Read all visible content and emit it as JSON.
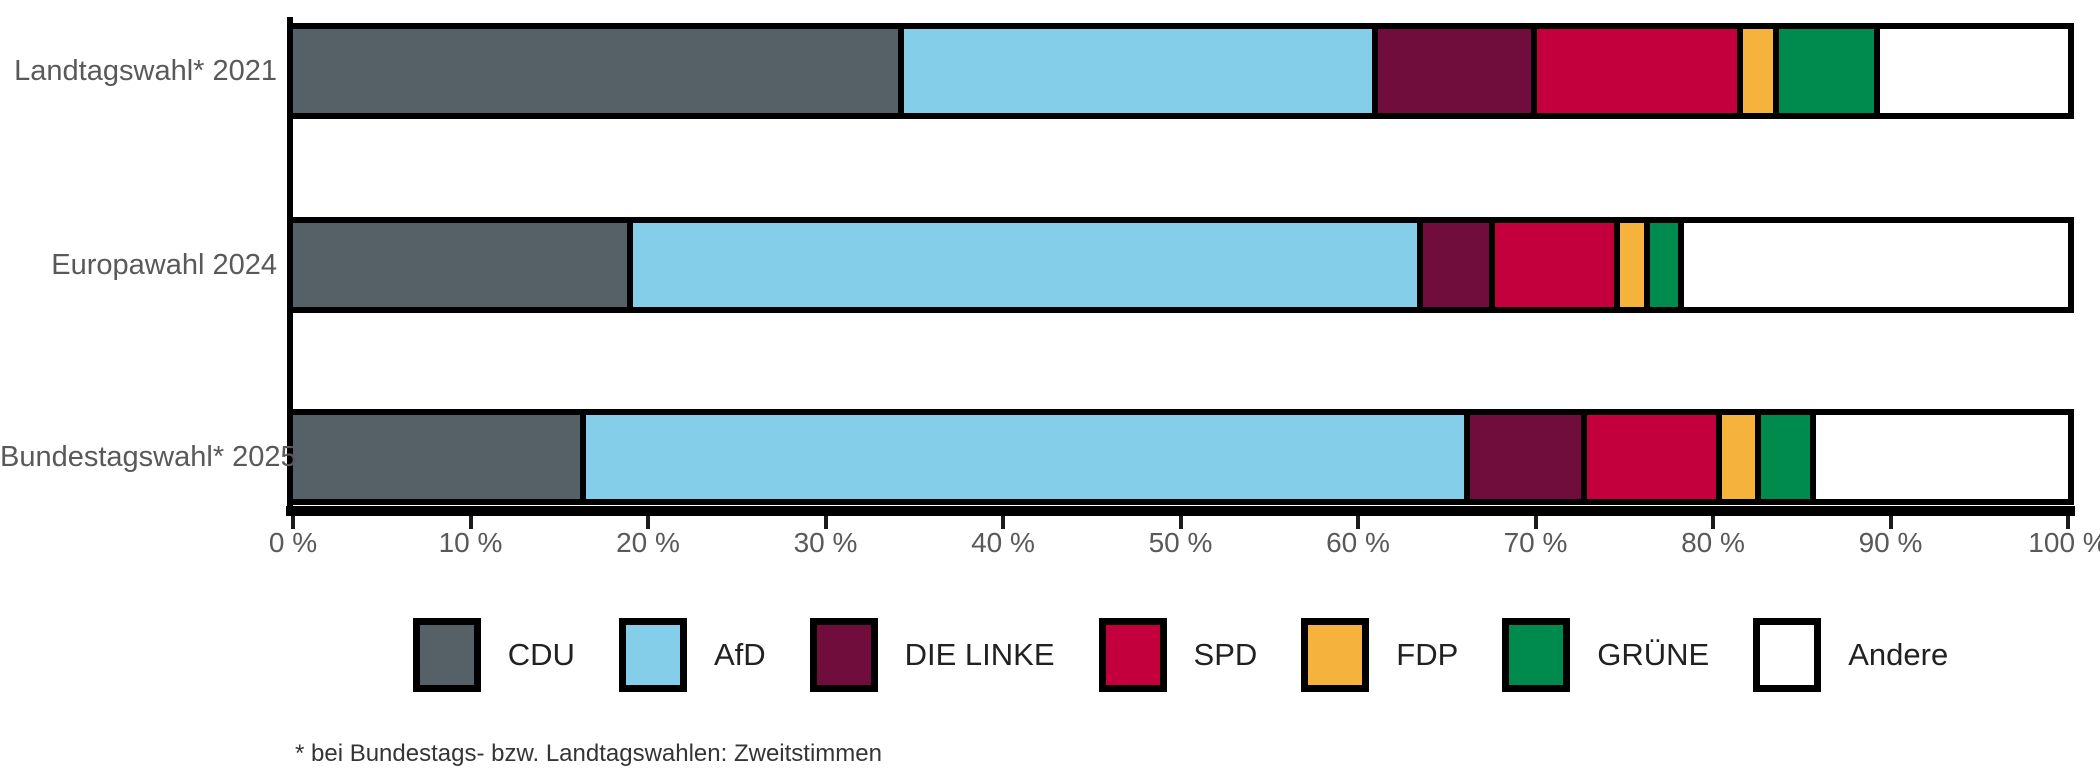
{
  "chart_data": {
    "type": "bar",
    "variant": "horizontal-stacked",
    "title": "",
    "categories": [
      "Landtagswahl* 2021",
      "Europawahl 2024",
      "Bundestagswahl* 2025"
    ],
    "series": [
      {
        "name": "CDU",
        "color": "#556067",
        "values": [
          34.8,
          19.2,
          16.5
        ]
      },
      {
        "name": "AfD",
        "color": "#85CEEA",
        "values": [
          26.9,
          45.1,
          50.5
        ]
      },
      {
        "name": "DIE LINKE",
        "color": "#700D3C",
        "values": [
          8.8,
          3.8,
          6.4
        ]
      },
      {
        "name": "SPD",
        "color": "#C3003D",
        "values": [
          11.5,
          6.8,
          7.4
        ]
      },
      {
        "name": "FDP",
        "color": "#F5B33D",
        "values": [
          1.7,
          1.4,
          1.9
        ]
      },
      {
        "name": "GRÜNE",
        "color": "#008B4E",
        "values": [
          5.5,
          1.6,
          2.8
        ]
      },
      {
        "name": "Andere",
        "color": "#FFFFFF",
        "values": [
          10.8,
          22.1,
          14.5
        ]
      }
    ],
    "x_axis": {
      "min": 0,
      "max": 100,
      "tick_step": 10,
      "tick_labels": [
        "0 %",
        "10 %",
        "20 %",
        "30 %",
        "40 %",
        "50 %",
        "60 %",
        "70 %",
        "80 %",
        "90 %",
        "100 %"
      ]
    },
    "xlabel": "",
    "ylabel": "",
    "grid": false,
    "legend_position": "bottom",
    "bar_outline_color": "#000000",
    "footnote": "* bei Bundestags- bzw. Landtagswahlen: Zweitstimmen"
  }
}
